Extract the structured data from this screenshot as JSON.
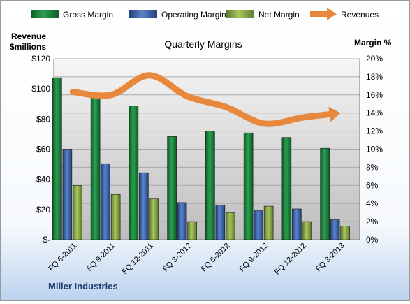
{
  "chart_data": {
    "type": "bar",
    "title": "Quarterly Margins",
    "source_label": "Miller Industries",
    "left_axis_label_line1": "Revenue",
    "left_axis_label_line2": "$millions",
    "right_axis_label": "Margin %",
    "categories": [
      "FQ 6-2011",
      "FQ 9-2011",
      "FQ 12-2011",
      "FQ 3-2012",
      "FQ 6-2012",
      "FQ 9-2012",
      "FQ 12-2012",
      "FQ 3-2013"
    ],
    "left_ticks": [
      "$-",
      "$20",
      "$40",
      "$60",
      "$80",
      "$100",
      "$120"
    ],
    "right_ticks": [
      "0%",
      "2%",
      "4%",
      "6%",
      "8%",
      "10%",
      "12%",
      "14%",
      "16%",
      "18%",
      "20%"
    ],
    "ylim_left": [
      0,
      120
    ],
    "ylim_right": [
      0,
      20
    ],
    "legend_placement": "top",
    "grid": true,
    "series": [
      {
        "name": "Gross Margin",
        "axis": "right",
        "kind": "bar",
        "color": "#1e8a3f",
        "values": [
          17.9,
          16.2,
          14.8,
          11.4,
          12.0,
          11.8,
          11.3,
          10.1
        ]
      },
      {
        "name": "Operating Margin",
        "axis": "right",
        "kind": "bar",
        "color": "#3e67b0",
        "values": [
          10.0,
          8.4,
          7.4,
          4.1,
          3.8,
          3.2,
          3.4,
          2.2
        ]
      },
      {
        "name": "Net Margin",
        "axis": "right",
        "kind": "bar",
        "color": "#8db04a",
        "values": [
          6.0,
          5.0,
          4.5,
          2.0,
          3.0,
          3.7,
          2.0,
          1.5
        ]
      },
      {
        "name": "Revenues",
        "axis": "left",
        "kind": "line",
        "color": "#e8883c",
        "values": [
          98,
          96,
          109,
          95,
          88,
          77,
          81,
          84
        ]
      }
    ]
  }
}
